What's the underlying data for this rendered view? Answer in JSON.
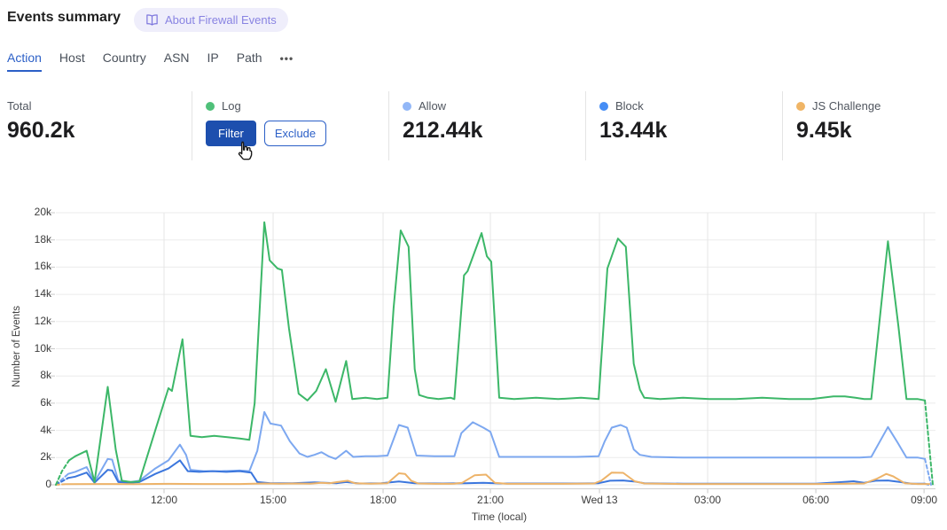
{
  "header": {
    "title": "Events summary",
    "about_badge": "About Firewall Events"
  },
  "tabs": {
    "items": [
      {
        "label": "Action",
        "active": true
      },
      {
        "label": "Host",
        "active": false
      },
      {
        "label": "Country",
        "active": false
      },
      {
        "label": "ASN",
        "active": false
      },
      {
        "label": "IP",
        "active": false
      },
      {
        "label": "Path",
        "active": false
      }
    ],
    "overflow": "•••"
  },
  "stats": [
    {
      "label": "Total",
      "value": "960.2k",
      "dot": null
    },
    {
      "label": "Log",
      "dot": "#4fc079",
      "buttons": [
        {
          "label": "Filter"
        },
        {
          "label": "Exclude"
        }
      ]
    },
    {
      "label": "Allow",
      "value": "212.44k",
      "dot": "#92b7f7"
    },
    {
      "label": "Block",
      "value": "13.44k",
      "dot": "#458df5"
    },
    {
      "label": "JS Challenge",
      "value": "9.45k",
      "dot": "#f0b566"
    }
  ],
  "chart_data": {
    "type": "line",
    "xlabel": "Time (local)",
    "ylabel": "Number of Events",
    "ylim": [
      0,
      20000
    ],
    "grid": true,
    "legend_position": "stats-row-above",
    "y_ticks": [
      "20k",
      "18k",
      "16k",
      "14k",
      "12k",
      "10k",
      "8k",
      "6k",
      "4k",
      "2k",
      "0"
    ],
    "x_ticks": [
      {
        "label": "12:00",
        "f": 0.123
      },
      {
        "label": "15:00",
        "f": 0.247
      },
      {
        "label": "18:00",
        "f": 0.372
      },
      {
        "label": "21:00",
        "f": 0.494
      },
      {
        "label": "Wed 13",
        "f": 0.618
      },
      {
        "label": "03:00",
        "f": 0.741
      },
      {
        "label": "06:00",
        "f": 0.864
      },
      {
        "label": "09:00",
        "f": 0.987
      }
    ],
    "series": [
      {
        "name": "Allow",
        "color": "#7da8f0",
        "dash_head": [
          [
            0,
            0
          ],
          [
            0.014,
            800
          ]
        ],
        "solid": [
          [
            0.014,
            800
          ],
          [
            0.022,
            950
          ],
          [
            0.035,
            1300
          ],
          [
            0.044,
            200
          ],
          [
            0.059,
            1900
          ],
          [
            0.064,
            1850
          ],
          [
            0.071,
            300
          ],
          [
            0.085,
            200
          ],
          [
            0.095,
            300
          ],
          [
            0.113,
            1200
          ],
          [
            0.128,
            1800
          ],
          [
            0.141,
            2950
          ],
          [
            0.148,
            2200
          ],
          [
            0.153,
            1100
          ],
          [
            0.168,
            1000
          ],
          [
            0.188,
            1000
          ],
          [
            0.209,
            1050
          ],
          [
            0.22,
            1000
          ],
          [
            0.229,
            2500
          ],
          [
            0.237,
            5350
          ],
          [
            0.244,
            4500
          ],
          [
            0.256,
            4350
          ],
          [
            0.266,
            3200
          ],
          [
            0.277,
            2300
          ],
          [
            0.286,
            2050
          ],
          [
            0.294,
            2200
          ],
          [
            0.302,
            2400
          ],
          [
            0.31,
            2100
          ],
          [
            0.318,
            1900
          ],
          [
            0.33,
            2500
          ],
          [
            0.338,
            2050
          ],
          [
            0.352,
            2100
          ],
          [
            0.365,
            2100
          ],
          [
            0.377,
            2150
          ],
          [
            0.39,
            4400
          ],
          [
            0.4,
            4200
          ],
          [
            0.41,
            2150
          ],
          [
            0.43,
            2100
          ],
          [
            0.453,
            2100
          ],
          [
            0.461,
            3800
          ],
          [
            0.474,
            4600
          ],
          [
            0.486,
            4200
          ],
          [
            0.494,
            3900
          ],
          [
            0.504,
            2050
          ],
          [
            0.531,
            2050
          ],
          [
            0.561,
            2050
          ],
          [
            0.592,
            2050
          ],
          [
            0.617,
            2100
          ],
          [
            0.624,
            3200
          ],
          [
            0.632,
            4200
          ],
          [
            0.642,
            4400
          ],
          [
            0.649,
            4200
          ],
          [
            0.657,
            2600
          ],
          [
            0.664,
            2200
          ],
          [
            0.677,
            2050
          ],
          [
            0.713,
            2000
          ],
          [
            0.753,
            2000
          ],
          [
            0.793,
            2000
          ],
          [
            0.834,
            2000
          ],
          [
            0.874,
            2000
          ],
          [
            0.914,
            2000
          ],
          [
            0.927,
            2050
          ],
          [
            0.946,
            4250
          ],
          [
            0.957,
            3100
          ],
          [
            0.967,
            2000
          ],
          [
            0.98,
            2000
          ],
          [
            0.988,
            1900
          ]
        ],
        "dash_tail": [
          [
            0.988,
            1900
          ],
          [
            0.995,
            0
          ]
        ]
      },
      {
        "name": "Block",
        "color": "#3b76dd",
        "dash_head": [
          [
            0,
            0
          ],
          [
            0.014,
            500
          ]
        ],
        "solid": [
          [
            0.014,
            500
          ],
          [
            0.022,
            600
          ],
          [
            0.035,
            900
          ],
          [
            0.044,
            150
          ],
          [
            0.059,
            1100
          ],
          [
            0.064,
            1050
          ],
          [
            0.071,
            200
          ],
          [
            0.085,
            150
          ],
          [
            0.095,
            200
          ],
          [
            0.113,
            800
          ],
          [
            0.128,
            1200
          ],
          [
            0.141,
            1800
          ],
          [
            0.15,
            1000
          ],
          [
            0.163,
            950
          ],
          [
            0.178,
            1000
          ],
          [
            0.194,
            950
          ],
          [
            0.209,
            1000
          ],
          [
            0.222,
            900
          ],
          [
            0.229,
            200
          ],
          [
            0.244,
            120
          ],
          [
            0.269,
            120
          ],
          [
            0.294,
            180
          ],
          [
            0.319,
            120
          ],
          [
            0.33,
            200
          ],
          [
            0.345,
            100
          ],
          [
            0.37,
            120
          ],
          [
            0.39,
            250
          ],
          [
            0.408,
            120
          ],
          [
            0.44,
            100
          ],
          [
            0.466,
            120
          ],
          [
            0.486,
            150
          ],
          [
            0.506,
            100
          ],
          [
            0.551,
            100
          ],
          [
            0.592,
            100
          ],
          [
            0.617,
            120
          ],
          [
            0.63,
            300
          ],
          [
            0.645,
            320
          ],
          [
            0.657,
            250
          ],
          [
            0.669,
            120
          ],
          [
            0.713,
            80
          ],
          [
            0.763,
            80
          ],
          [
            0.813,
            80
          ],
          [
            0.864,
            80
          ],
          [
            0.894,
            200
          ],
          [
            0.907,
            260
          ],
          [
            0.919,
            150
          ],
          [
            0.932,
            300
          ],
          [
            0.946,
            320
          ],
          [
            0.96,
            200
          ],
          [
            0.973,
            80
          ],
          [
            0.988,
            80
          ]
        ],
        "dash_tail": [
          [
            0.988,
            80
          ],
          [
            0.993,
            0
          ]
        ]
      },
      {
        "name": "JS Challenge",
        "color": "#edb369",
        "dash_head": [
          [
            0,
            0
          ],
          [
            0.012,
            50
          ]
        ],
        "solid": [
          [
            0.012,
            50
          ],
          [
            0.047,
            60
          ],
          [
            0.088,
            50
          ],
          [
            0.128,
            70
          ],
          [
            0.168,
            60
          ],
          [
            0.209,
            60
          ],
          [
            0.237,
            100
          ],
          [
            0.254,
            80
          ],
          [
            0.274,
            100
          ],
          [
            0.289,
            80
          ],
          [
            0.302,
            150
          ],
          [
            0.311,
            120
          ],
          [
            0.325,
            250
          ],
          [
            0.332,
            300
          ],
          [
            0.34,
            120
          ],
          [
            0.358,
            80
          ],
          [
            0.377,
            120
          ],
          [
            0.384,
            500
          ],
          [
            0.39,
            850
          ],
          [
            0.397,
            800
          ],
          [
            0.404,
            300
          ],
          [
            0.412,
            100
          ],
          [
            0.432,
            70
          ],
          [
            0.453,
            80
          ],
          [
            0.462,
            150
          ],
          [
            0.476,
            700
          ],
          [
            0.489,
            750
          ],
          [
            0.499,
            150
          ],
          [
            0.513,
            70
          ],
          [
            0.551,
            70
          ],
          [
            0.592,
            80
          ],
          [
            0.612,
            100
          ],
          [
            0.62,
            300
          ],
          [
            0.632,
            900
          ],
          [
            0.645,
            880
          ],
          [
            0.658,
            260
          ],
          [
            0.669,
            100
          ],
          [
            0.713,
            60
          ],
          [
            0.763,
            60
          ],
          [
            0.813,
            60
          ],
          [
            0.864,
            60
          ],
          [
            0.899,
            80
          ],
          [
            0.919,
            100
          ],
          [
            0.934,
            460
          ],
          [
            0.944,
            800
          ],
          [
            0.952,
            620
          ],
          [
            0.965,
            120
          ],
          [
            0.98,
            60
          ],
          [
            0.993,
            60
          ]
        ],
        "dash_tail": null
      },
      {
        "name": "Log",
        "color": "#3cb768",
        "dash_head": [
          [
            0,
            0
          ],
          [
            0.007,
            1000
          ],
          [
            0.015,
            1800
          ]
        ],
        "solid": [
          [
            0.015,
            1800
          ],
          [
            0.022,
            2100
          ],
          [
            0.035,
            2500
          ],
          [
            0.044,
            200
          ],
          [
            0.059,
            7200
          ],
          [
            0.068,
            2600
          ],
          [
            0.075,
            300
          ],
          [
            0.085,
            200
          ],
          [
            0.095,
            250
          ],
          [
            0.113,
            4000
          ],
          [
            0.128,
            7100
          ],
          [
            0.132,
            6900
          ],
          [
            0.144,
            10700
          ],
          [
            0.153,
            3600
          ],
          [
            0.166,
            3500
          ],
          [
            0.18,
            3600
          ],
          [
            0.195,
            3500
          ],
          [
            0.209,
            3400
          ],
          [
            0.22,
            3300
          ],
          [
            0.226,
            6000
          ],
          [
            0.237,
            19300
          ],
          [
            0.243,
            16500
          ],
          [
            0.252,
            15900
          ],
          [
            0.257,
            15800
          ],
          [
            0.265,
            11500
          ],
          [
            0.276,
            6700
          ],
          [
            0.286,
            6200
          ],
          [
            0.296,
            6900
          ],
          [
            0.307,
            8500
          ],
          [
            0.318,
            6100
          ],
          [
            0.33,
            9100
          ],
          [
            0.337,
            6300
          ],
          [
            0.352,
            6400
          ],
          [
            0.365,
            6300
          ],
          [
            0.377,
            6400
          ],
          [
            0.384,
            13000
          ],
          [
            0.392,
            18700
          ],
          [
            0.401,
            17500
          ],
          [
            0.408,
            8500
          ],
          [
            0.413,
            6600
          ],
          [
            0.423,
            6400
          ],
          [
            0.435,
            6300
          ],
          [
            0.449,
            6400
          ],
          [
            0.453,
            6300
          ],
          [
            0.464,
            15400
          ],
          [
            0.468,
            15700
          ],
          [
            0.484,
            18500
          ],
          [
            0.49,
            16800
          ],
          [
            0.495,
            16400
          ],
          [
            0.504,
            6400
          ],
          [
            0.521,
            6300
          ],
          [
            0.546,
            6400
          ],
          [
            0.571,
            6300
          ],
          [
            0.597,
            6400
          ],
          [
            0.617,
            6300
          ],
          [
            0.627,
            15900
          ],
          [
            0.639,
            18100
          ],
          [
            0.648,
            17500
          ],
          [
            0.657,
            8900
          ],
          [
            0.664,
            7000
          ],
          [
            0.669,
            6400
          ],
          [
            0.687,
            6300
          ],
          [
            0.713,
            6400
          ],
          [
            0.743,
            6300
          ],
          [
            0.773,
            6300
          ],
          [
            0.803,
            6400
          ],
          [
            0.834,
            6300
          ],
          [
            0.859,
            6300
          ],
          [
            0.884,
            6500
          ],
          [
            0.897,
            6500
          ],
          [
            0.909,
            6400
          ],
          [
            0.919,
            6300
          ],
          [
            0.927,
            6300
          ],
          [
            0.946,
            17900
          ],
          [
            0.958,
            11600
          ],
          [
            0.967,
            6300
          ],
          [
            0.98,
            6300
          ],
          [
            0.988,
            6200
          ]
        ],
        "dash_tail": [
          [
            0.988,
            6200
          ],
          [
            0.997,
            0
          ]
        ]
      }
    ]
  }
}
